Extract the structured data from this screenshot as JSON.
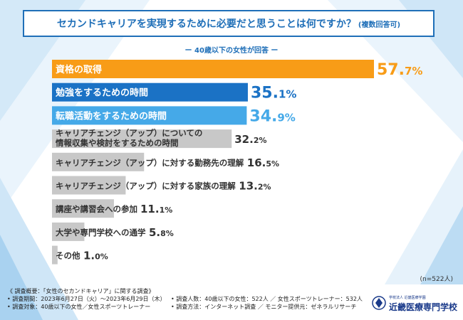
{
  "title": {
    "main": "セカンドキャリアを実現するために必要だと思うことは何ですか？",
    "sub": "(複数回答可)"
  },
  "subtitle": "ー 40歳以下の女性が回答 ー",
  "sample_size": "(n=522人)",
  "survey": {
    "heading": "《 調査概要：「女性のセカンドキャリア」に関する調査》",
    "period": "• 調査期間：2023年6月27日（火）〜2023年6月29日（木）",
    "respondents": "• 調査人数：40歳以下の女性：522人 ／ 女性スポーツトレーナー：532人",
    "target": "• 調査対象：40歳以下の女性／女性スポーツトレーナー",
    "method": "• 調査方法：インターネット調査",
    "provider": "／ モニター提供元：ゼネラルリサーチ"
  },
  "logo": {
    "small": "学校法人 近畿医療学園",
    "name": "近畿医療専門学校"
  },
  "colors": {
    "top1": "#f89c17",
    "top2": "#1b72c5",
    "top3": "#45a9e8",
    "other": "#c8c8c8",
    "label_dark": "#333333"
  },
  "chart_data": {
    "type": "bar",
    "orientation": "horizontal",
    "unit": "%",
    "xlim": [
      0,
      57.7
    ],
    "categories": [
      [
        "資格の取得"
      ],
      [
        "勉強をするための時間"
      ],
      [
        "転職活動をするための時間"
      ],
      [
        "キャリアチェンジ（アップ）についての",
        "情報収集や検討をするための時間"
      ],
      [
        "キャリアチェンジ（アップ）に対する勤務先の理解"
      ],
      [
        "キャリアチェンジ（アップ）に対する家族の理解"
      ],
      [
        "講座や講習会への参加"
      ],
      [
        "大学や専門学校への通学"
      ],
      [
        "その他"
      ]
    ],
    "values": [
      57.7,
      35.1,
      34.9,
      32.2,
      16.5,
      13.2,
      11.1,
      5.8,
      1.0
    ],
    "value_labels": [
      [
        "57.",
        "7%"
      ],
      [
        "35.",
        "1%"
      ],
      [
        "34.",
        "9%"
      ],
      [
        "32.",
        "2%"
      ],
      [
        "16.",
        "5%"
      ],
      [
        "13.",
        "2%"
      ],
      [
        "11.",
        "1%"
      ],
      [
        "5.",
        "8%"
      ],
      [
        "1.",
        "0%"
      ]
    ]
  }
}
